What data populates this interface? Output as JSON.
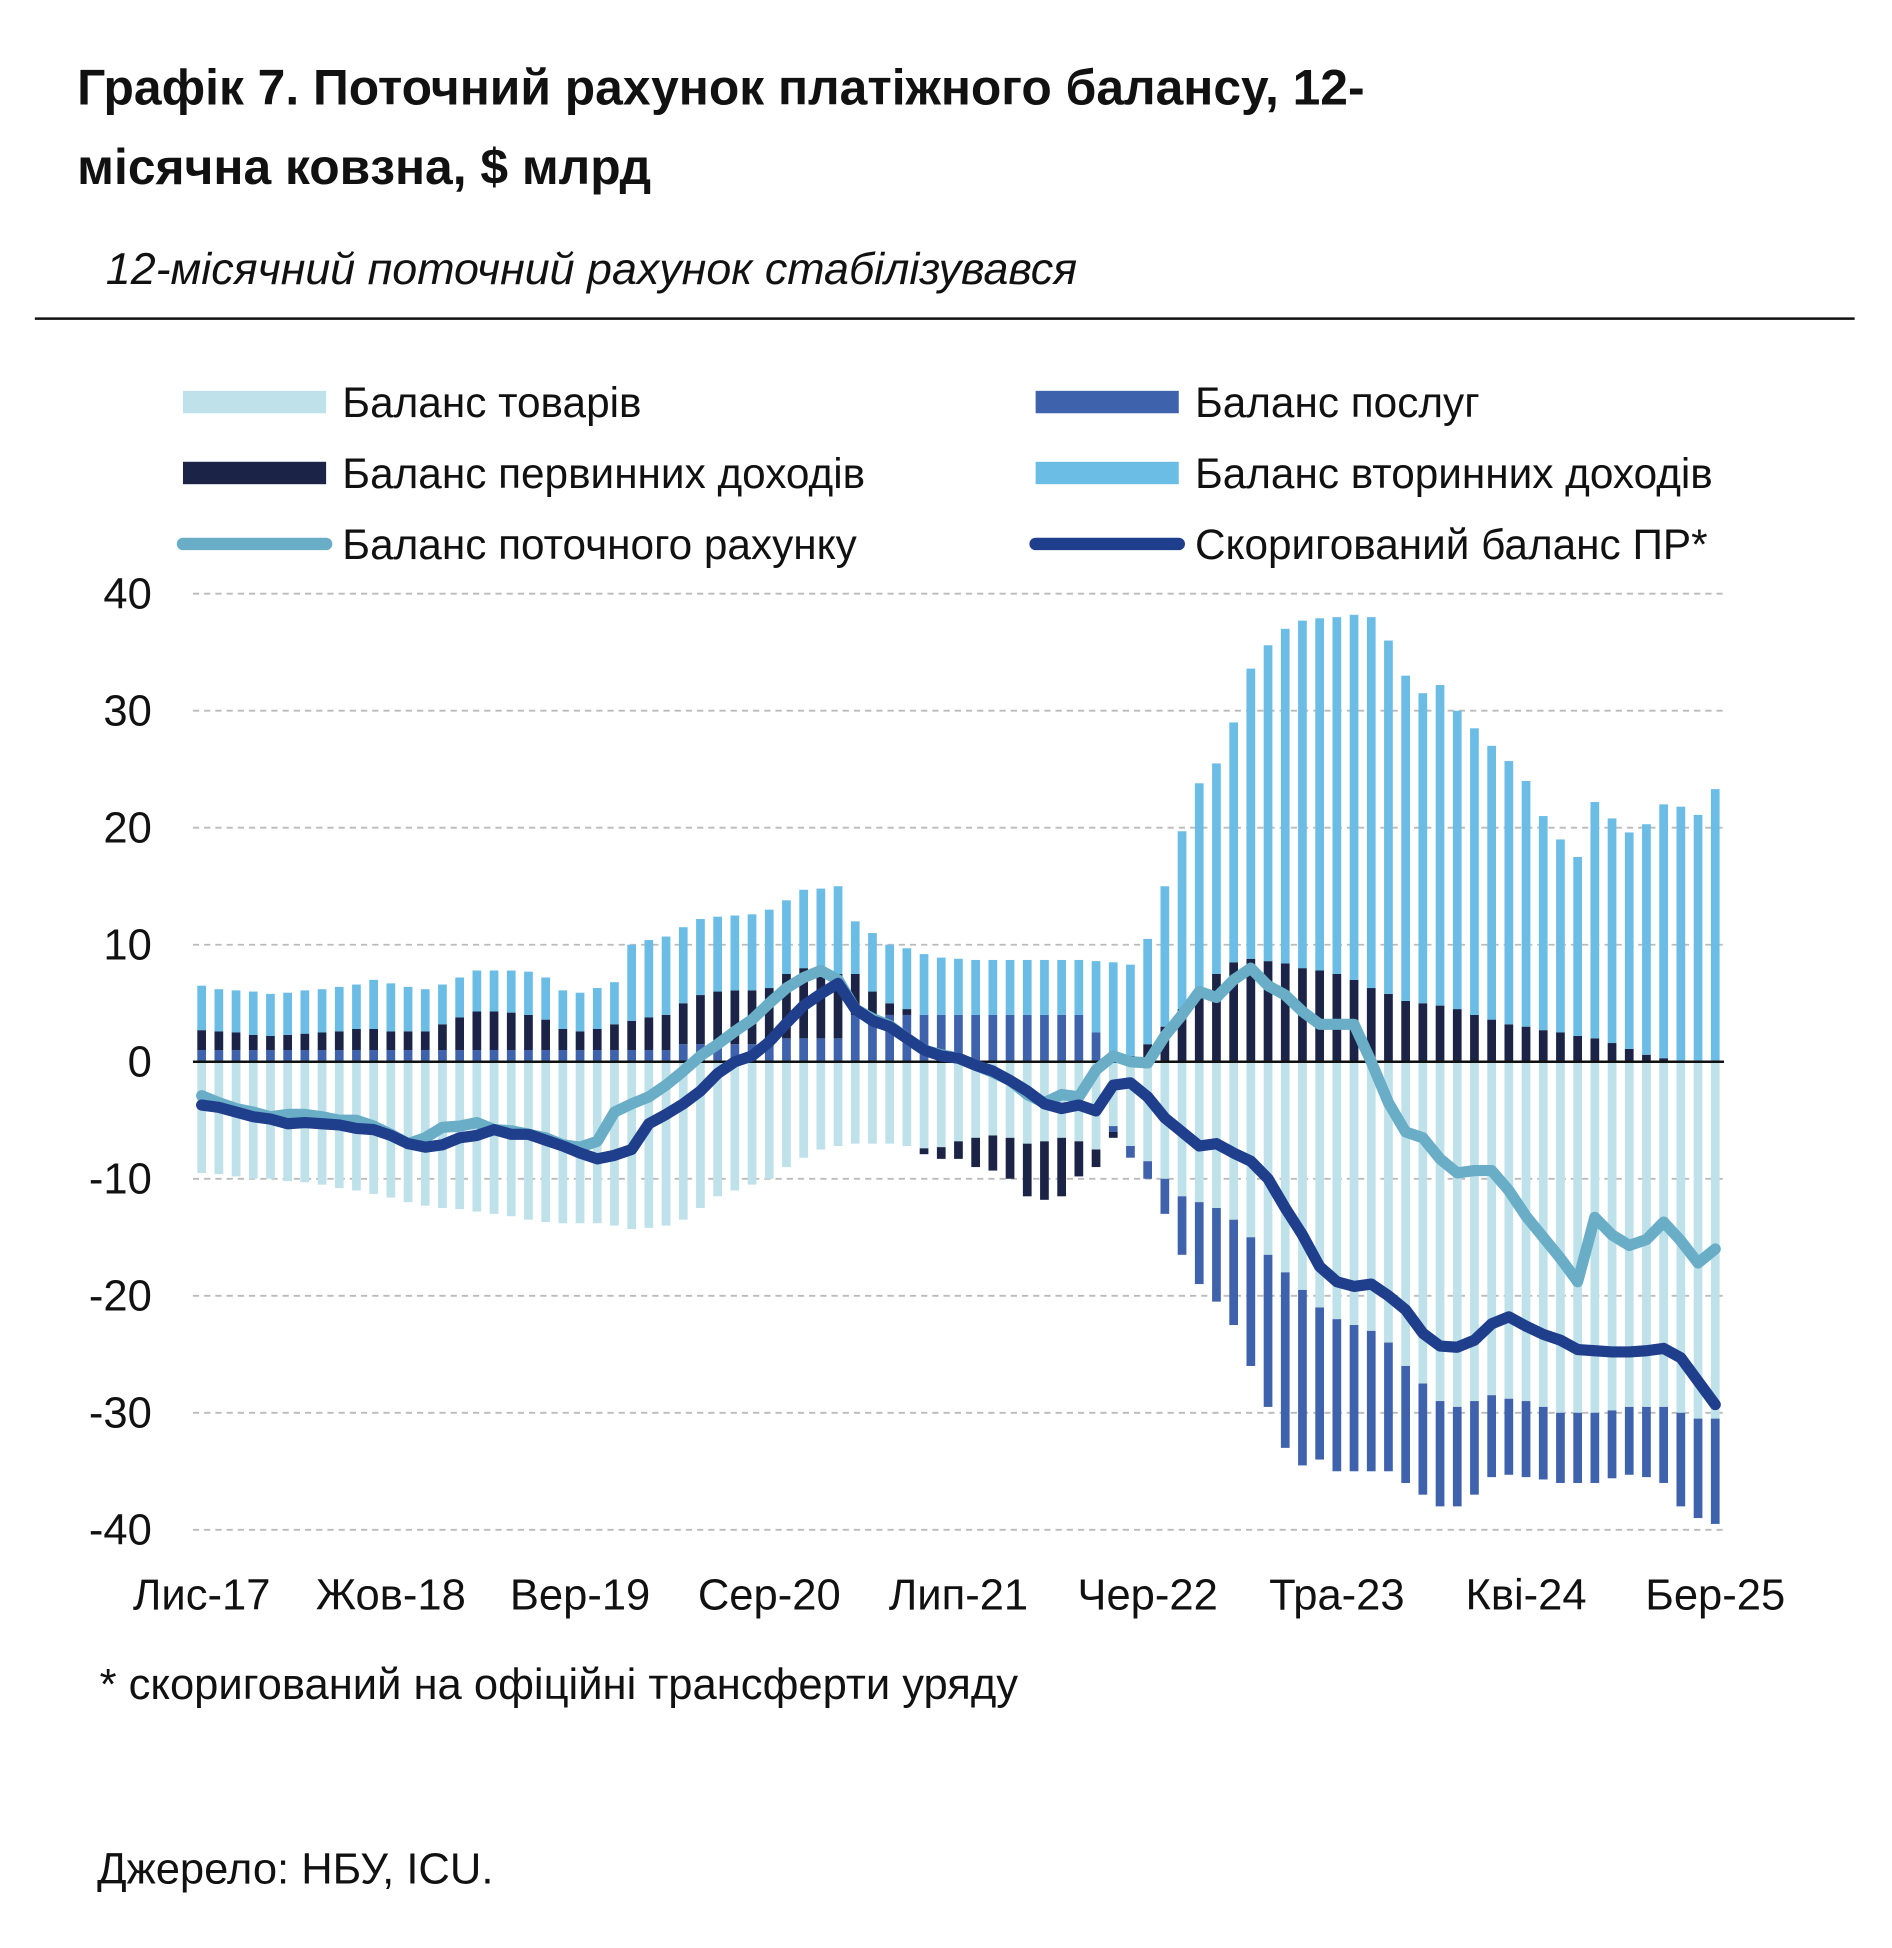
{
  "chart_data": {
    "type": "bar",
    "title_lines": [
      "Графік 7. Поточний рахунок платіжного балансу, 12-",
      "місячна ковзна, $ млрд"
    ],
    "subtitle": "12-місячний поточний рахунок стабілізувався",
    "footnote": "* скоригований на офіційні трансферти уряду",
    "source": "Джерело: НБУ, ICU.",
    "categories": [
      "Лис-17",
      null,
      null,
      null,
      null,
      null,
      null,
      null,
      null,
      null,
      null,
      "Жов-18",
      null,
      null,
      null,
      null,
      null,
      null,
      null,
      null,
      null,
      null,
      "Вер-19",
      null,
      null,
      null,
      null,
      null,
      null,
      null,
      null,
      null,
      null,
      "Сер-20",
      null,
      null,
      null,
      null,
      null,
      null,
      null,
      null,
      null,
      null,
      "Лип-21",
      null,
      null,
      null,
      null,
      null,
      null,
      null,
      null,
      null,
      null,
      "Чер-22",
      null,
      null,
      null,
      null,
      null,
      null,
      null,
      null,
      null,
      null,
      "Тра-23",
      null,
      null,
      null,
      null,
      null,
      null,
      null,
      null,
      null,
      null,
      "Кві-24",
      null,
      null,
      null,
      null,
      null,
      null,
      null,
      null,
      null,
      null,
      "Бер-25"
    ],
    "ylim": [
      -40,
      40
    ],
    "yticks": [
      -40,
      -30,
      -20,
      -10,
      0,
      10,
      20,
      30,
      40
    ],
    "grid": true,
    "series": [
      {
        "name": "Баланс товарів",
        "type": "bar",
        "color": "#bfe1ea",
        "values": [
          -9.5,
          -9.6,
          -9.8,
          -10,
          -10,
          -10.2,
          -10.3,
          -10.5,
          -10.8,
          -11,
          -11.3,
          -11.6,
          -12,
          -12.3,
          -12.5,
          -12.6,
          -12.8,
          -13,
          -13.2,
          -13.5,
          -13.7,
          -13.8,
          -13.8,
          -13.8,
          -14,
          -14.3,
          -14.2,
          -14,
          -13.5,
          -12.5,
          -11.5,
          -11,
          -10.5,
          -10,
          -9,
          -8.2,
          -7.5,
          -7.2,
          -7,
          -7,
          -7,
          -7.2,
          -7.4,
          -7.3,
          -6.8,
          -6.5,
          -6.3,
          -6.5,
          -7,
          -6.8,
          -6.5,
          -6.8,
          -7.5,
          -5.5,
          -7.2,
          -8.5,
          -10,
          -11.5,
          -12,
          -12.5,
          -13.5,
          -15,
          -16.5,
          -18,
          -19.5,
          -21,
          -22,
          -22.5,
          -23,
          -24,
          -26,
          -27.5,
          -29,
          -29.5,
          -29,
          -28.5,
          -28.8,
          -29,
          -29.5,
          -30,
          -30,
          -30,
          -29.8,
          -29.5,
          -29.5,
          -29.5,
          -30,
          -30.5,
          -30.5
        ]
      },
      {
        "name": "Баланс послуг",
        "type": "bar",
        "color": "#3f62ac",
        "values": [
          1,
          1,
          1,
          1,
          1,
          1,
          1,
          1,
          1,
          1,
          1,
          1,
          1,
          1,
          1,
          1,
          1,
          1,
          1,
          1,
          1,
          1,
          1,
          1,
          1,
          1,
          1,
          1,
          1.5,
          1.5,
          1.5,
          1.5,
          1.5,
          1.5,
          2,
          2,
          2,
          2,
          4,
          4,
          4,
          4,
          4,
          4,
          4,
          4,
          4,
          4,
          4,
          4,
          4,
          4,
          2.5,
          -0.5,
          -1,
          -1.5,
          -3,
          -5,
          -7,
          -8,
          -9,
          -11,
          -13,
          -15,
          -15,
          -13,
          -13,
          -12.5,
          -12,
          -11,
          -10,
          -9.5,
          -9,
          -8.5,
          -8,
          -7,
          -6.5,
          -6.5,
          -6.2,
          -6,
          -6,
          -6,
          -5.8,
          -5.8,
          -6,
          -6.5,
          -8,
          -8.5,
          -9
        ]
      },
      {
        "name": "Баланс первинних доходів",
        "type": "bar",
        "color": "#1b2447",
        "values": [
          1.7,
          1.6,
          1.5,
          1.3,
          1.2,
          1.3,
          1.4,
          1.5,
          1.6,
          1.8,
          1.8,
          1.6,
          1.6,
          1.6,
          2.2,
          2.8,
          3.3,
          3.3,
          3.2,
          3,
          2.6,
          1.8,
          1.6,
          1.8,
          2.2,
          2.5,
          2.8,
          3,
          3.5,
          4.2,
          4.5,
          4.6,
          4.6,
          4.8,
          5.5,
          6,
          5.8,
          5.5,
          3.5,
          2,
          1,
          0.5,
          -0.5,
          -1,
          -1.5,
          -2.5,
          -3,
          -3.5,
          -4.5,
          -5,
          -5,
          -3,
          -1.5,
          -0.5,
          0.5,
          1.5,
          3,
          4.5,
          6,
          7.5,
          8.5,
          8.8,
          8.6,
          8.4,
          8,
          7.8,
          7.5,
          7,
          6.3,
          5.8,
          5.2,
          5,
          4.8,
          4.5,
          4,
          3.6,
          3.2,
          3,
          2.7,
          2.5,
          2.2,
          2,
          1.6,
          1.1,
          0.6,
          0.3,
          0.1,
          0,
          0
        ]
      },
      {
        "name": "Баланс вторинних доходів",
        "type": "bar",
        "color": "#6bbde6",
        "values": [
          3.8,
          3.6,
          3.6,
          3.7,
          3.6,
          3.6,
          3.7,
          3.7,
          3.8,
          3.8,
          4.2,
          4.1,
          3.8,
          3.6,
          3.4,
          3.4,
          3.5,
          3.5,
          3.6,
          3.7,
          3.6,
          3.3,
          3.3,
          3.5,
          3.6,
          6.5,
          6.6,
          6.7,
          6.5,
          6.5,
          6.4,
          6.4,
          6.5,
          6.7,
          6.3,
          6.7,
          7,
          7.5,
          4.5,
          5,
          5,
          5.2,
          5.2,
          4.9,
          4.8,
          4.7,
          4.7,
          4.7,
          4.7,
          4.7,
          4.7,
          4.7,
          6.1,
          8.5,
          7.8,
          9,
          12,
          15.2,
          17.8,
          18,
          20.5,
          24.8,
          27,
          28.6,
          29.7,
          30.1,
          30.5,
          31.2,
          31.7,
          30.2,
          27.8,
          26.5,
          27.4,
          25.5,
          24.5,
          23.4,
          22.5,
          21,
          18.3,
          16.5,
          15.3,
          20.2,
          19.2,
          18.5,
          19.7,
          21.7,
          21.7,
          21.1,
          23.3
        ]
      },
      {
        "name": "Баланс поточного рахунку",
        "type": "line",
        "color": "#69adc7",
        "values": [
          -2.9,
          -3.5,
          -4,
          -4.3,
          -4.7,
          -4.5,
          -4.5,
          -4.7,
          -5,
          -5,
          -5.5,
          -6.2,
          -7,
          -6.5,
          -5.6,
          -5.5,
          -5.2,
          -5.8,
          -5.9,
          -6.2,
          -6.5,
          -7.1,
          -7.3,
          -6.8,
          -4.3,
          -3.6,
          -3,
          -2,
          -0.8,
          0.5,
          1.5,
          2.6,
          3.6,
          5,
          6.3,
          7.2,
          7.8,
          7,
          4.5,
          3.7,
          3.1,
          2,
          1,
          0.6,
          0.3,
          -0.3,
          -0.9,
          -1.6,
          -2.8,
          -3.5,
          -2.8,
          -3,
          -0.7,
          0.5,
          0,
          -0.1,
          2.2,
          4,
          6,
          5.5,
          7,
          8,
          6.5,
          5.7,
          4.3,
          3.2,
          3.2,
          3.2,
          0,
          -3.5,
          -6,
          -6.5,
          -8.3,
          -9.5,
          -9.3,
          -9.3,
          -11,
          -13.2,
          -15,
          -16.8,
          -18.8,
          -13.3,
          -14.8,
          -15.7,
          -15.2,
          -13.7,
          -15.3,
          -17.2,
          -16
        ]
      },
      {
        "name": "Скоригований баланс ПР*",
        "type": "line",
        "color": "#1f3e8c",
        "values": [
          -3.7,
          -3.9,
          -4.3,
          -4.7,
          -4.9,
          -5.3,
          -5.2,
          -5.3,
          -5.4,
          -5.7,
          -5.8,
          -6.3,
          -7,
          -7.3,
          -7.1,
          -6.5,
          -6.3,
          -5.8,
          -6.2,
          -6.2,
          -6.7,
          -7.2,
          -7.8,
          -8.3,
          -8,
          -7.5,
          -5.3,
          -4.5,
          -3.6,
          -2.5,
          -1,
          0,
          0.5,
          1.7,
          3.3,
          4.8,
          5.8,
          6.7,
          4.5,
          3.5,
          3,
          2,
          1,
          0.5,
          0.3,
          -0.3,
          -0.8,
          -1.6,
          -2.5,
          -3.6,
          -4,
          -3.7,
          -4.2,
          -2,
          -1.8,
          -3,
          -4.8,
          -6,
          -7.2,
          -7,
          -7.8,
          -8.5,
          -10,
          -12.5,
          -14.8,
          -17.5,
          -18.8,
          -19.2,
          -19,
          -20,
          -21.2,
          -23.2,
          -24.3,
          -24.4,
          -23.8,
          -22.4,
          -21.8,
          -22.6,
          -23.3,
          -23.8,
          -24.6,
          -24.7,
          -24.8,
          -24.8,
          -24.7,
          -24.5,
          -25.3,
          -27.3,
          -29.3
        ]
      }
    ]
  }
}
